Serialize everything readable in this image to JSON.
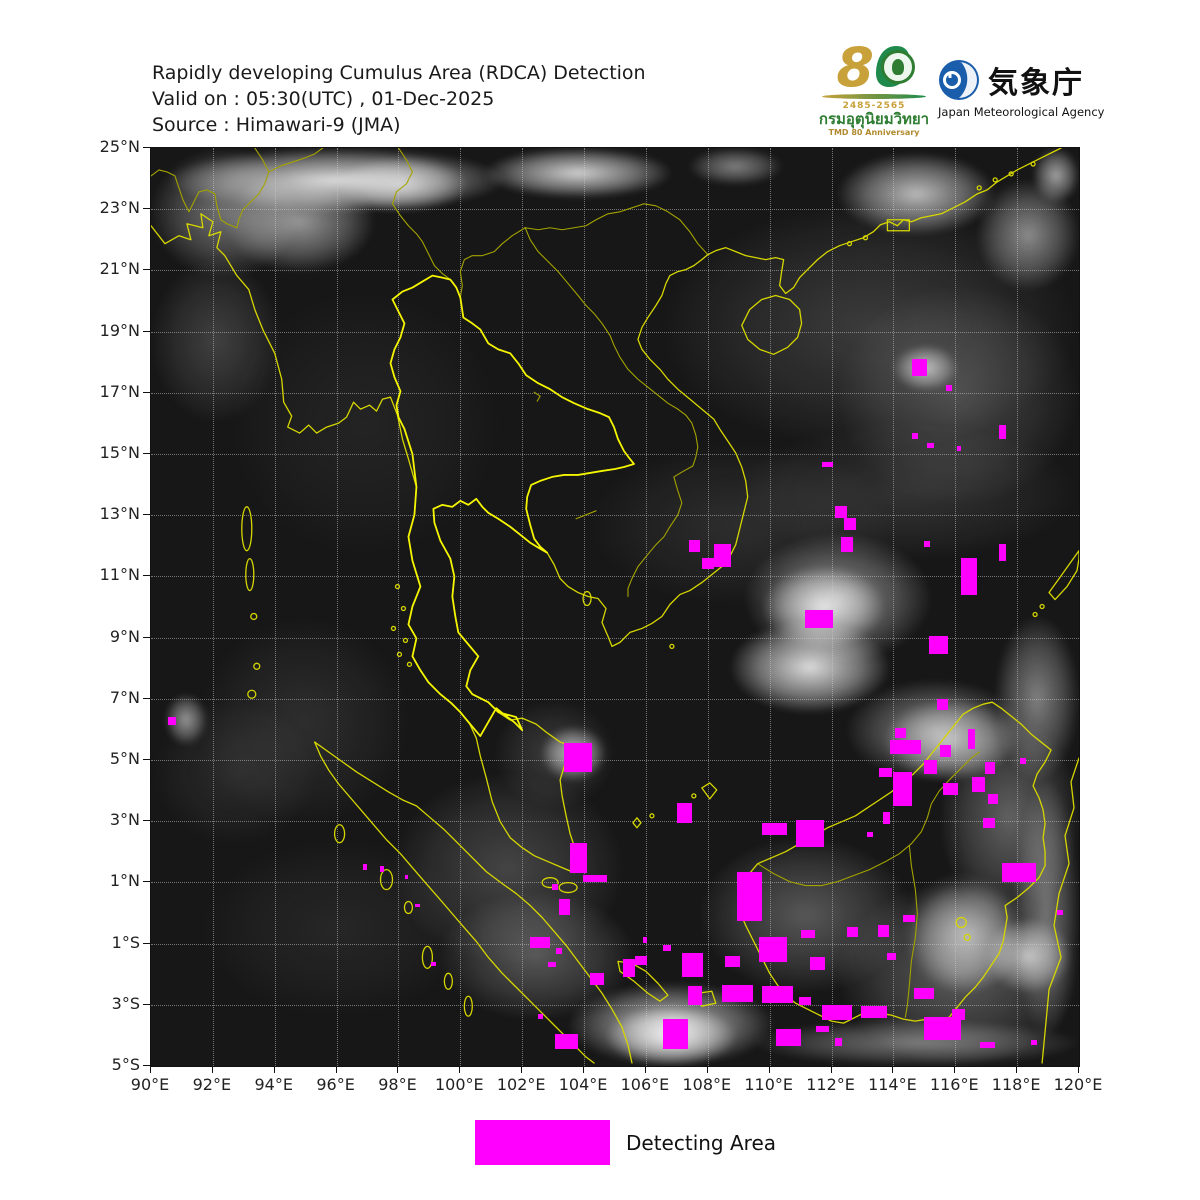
{
  "header": {
    "title_line1": "Rapidly developing Cumulus Area (RDCA) Detection",
    "title_line2": "Valid on : 05:30(UTC) , 01-Dec-2025",
    "title_line3": "Source : Himawari-9 (JMA)"
  },
  "logos": {
    "tmd": {
      "digit8": "8",
      "digit0": "0",
      "years": "2485-2565",
      "thai_name": "กรมอุตุนิยมวิทยา",
      "anniversary": "TMD 80 Anniversary"
    },
    "jma": {
      "kanji": "気象庁",
      "name": "Japan Meteorological Agency"
    }
  },
  "map": {
    "lon_min": 90,
    "lon_span": 30,
    "lat_max": 25,
    "lat_span": 30,
    "grid_divisions": 15,
    "x_ticks": [
      "90°E",
      "92°E",
      "94°E",
      "96°E",
      "98°E",
      "100°E",
      "102°E",
      "104°E",
      "106°E",
      "108°E",
      "110°E",
      "112°E",
      "114°E",
      "116°E",
      "118°E",
      "120°E"
    ],
    "y_ticks": [
      "25°N",
      "23°N",
      "21°N",
      "19°N",
      "17°N",
      "15°N",
      "13°N",
      "11°N",
      "9°N",
      "7°N",
      "5°N",
      "3°N",
      "1°N",
      "1°S",
      "3°S",
      "5°S"
    ],
    "coast_color": "#d6d600",
    "thailand_border_color": "#f5f500",
    "border_color_dim": "#a3a300",
    "detection_color": "#ff00ff",
    "detections_deg": [
      [
        114.6,
        18.1,
        0.5,
        0.55
      ],
      [
        115.7,
        17.25,
        0.2,
        0.2
      ],
      [
        114.6,
        15.7,
        0.2,
        0.2
      ],
      [
        115.1,
        15.35,
        0.2,
        0.15
      ],
      [
        117.4,
        15.95,
        0.25,
        0.45
      ],
      [
        116.05,
        15.25,
        0.15,
        0.15
      ],
      [
        111.7,
        14.75,
        0.35,
        0.18
      ],
      [
        112.1,
        13.3,
        0.4,
        0.4
      ],
      [
        112.4,
        12.9,
        0.4,
        0.4
      ],
      [
        112.3,
        12.3,
        0.4,
        0.5
      ],
      [
        107.4,
        12.2,
        0.35,
        0.4
      ],
      [
        108.2,
        12.05,
        0.55,
        0.75
      ],
      [
        107.8,
        11.6,
        0.4,
        0.35
      ],
      [
        115.0,
        12.15,
        0.18,
        0.18
      ],
      [
        116.2,
        11.6,
        0.5,
        1.2
      ],
      [
        117.4,
        12.05,
        0.25,
        0.55
      ],
      [
        90.55,
        6.4,
        0.25,
        0.25
      ],
      [
        103.35,
        5.55,
        0.9,
        0.95
      ],
      [
        103.55,
        2.3,
        0.55,
        1.0
      ],
      [
        103.95,
        1.25,
        0.8,
        0.25
      ],
      [
        103.2,
        0.45,
        0.35,
        0.5
      ],
      [
        102.25,
        -0.8,
        0.65,
        0.35
      ],
      [
        103.1,
        -1.15,
        0.18,
        0.18
      ],
      [
        102.85,
        -1.6,
        0.25,
        0.18
      ],
      [
        104.2,
        -1.95,
        0.45,
        0.4
      ],
      [
        102.5,
        -3.3,
        0.18,
        0.18
      ],
      [
        103.05,
        -3.95,
        0.75,
        0.5
      ],
      [
        111.15,
        9.9,
        0.9,
        0.6
      ],
      [
        115.15,
        9.05,
        0.6,
        0.6
      ],
      [
        115.4,
        7.0,
        0.35,
        0.35
      ],
      [
        114.05,
        6.05,
        0.35,
        0.33
      ],
      [
        113.9,
        5.65,
        1.0,
        0.45
      ],
      [
        115.0,
        5.0,
        0.4,
        0.45
      ],
      [
        114.0,
        4.6,
        0.6,
        1.1
      ],
      [
        115.5,
        5.5,
        0.35,
        0.4
      ],
      [
        115.6,
        4.25,
        0.5,
        0.4
      ],
      [
        116.4,
        6.0,
        0.25,
        0.65
      ],
      [
        116.55,
        4.45,
        0.4,
        0.5
      ],
      [
        116.95,
        4.95,
        0.35,
        0.4
      ],
      [
        117.05,
        3.9,
        0.33,
        0.33
      ],
      [
        116.9,
        3.1,
        0.4,
        0.33
      ],
      [
        118.1,
        5.05,
        0.18,
        0.18
      ],
      [
        113.55,
        4.75,
        0.4,
        0.3
      ],
      [
        113.65,
        3.3,
        0.25,
        0.38
      ],
      [
        113.15,
        2.65,
        0.18,
        0.18
      ],
      [
        109.75,
        2.95,
        0.8,
        0.4
      ],
      [
        110.85,
        3.05,
        0.9,
        0.9
      ],
      [
        107.0,
        3.6,
        0.5,
        0.65
      ],
      [
        108.95,
        1.35,
        0.8,
        1.6
      ],
      [
        112.5,
        -0.45,
        0.35,
        0.35
      ],
      [
        113.5,
        -0.4,
        0.35,
        0.4
      ],
      [
        114.3,
        -0.05,
        0.4,
        0.25
      ],
      [
        117.5,
        1.65,
        1.1,
        0.65
      ],
      [
        119.3,
        0.1,
        0.18,
        0.18
      ],
      [
        105.9,
        -0.8,
        0.15,
        0.18
      ],
      [
        106.55,
        -1.05,
        0.25,
        0.18
      ],
      [
        105.25,
        -1.5,
        0.4,
        0.6
      ],
      [
        107.15,
        -1.3,
        0.7,
        0.8
      ],
      [
        108.55,
        -1.4,
        0.5,
        0.35
      ],
      [
        109.65,
        -0.8,
        0.9,
        0.8
      ],
      [
        111.0,
        -0.55,
        0.45,
        0.28
      ],
      [
        111.3,
        -1.45,
        0.5,
        0.4
      ],
      [
        113.8,
        -1.3,
        0.3,
        0.25
      ],
      [
        107.35,
        -2.4,
        0.45,
        0.6
      ],
      [
        108.45,
        -2.35,
        1.0,
        0.55
      ],
      [
        109.75,
        -2.4,
        1.0,
        0.55
      ],
      [
        110.95,
        -2.75,
        0.4,
        0.25
      ],
      [
        111.7,
        -3.0,
        0.95,
        0.5
      ],
      [
        112.95,
        -3.05,
        0.85,
        0.38
      ],
      [
        114.65,
        -2.45,
        0.65,
        0.35
      ],
      [
        115.0,
        -3.4,
        1.2,
        0.75
      ],
      [
        115.9,
        -3.15,
        0.4,
        0.35
      ],
      [
        110.2,
        -3.8,
        0.8,
        0.55
      ],
      [
        111.5,
        -3.7,
        0.42,
        0.2
      ],
      [
        112.1,
        -4.1,
        0.25,
        0.25
      ],
      [
        106.55,
        -3.45,
        0.8,
        1.0
      ],
      [
        116.8,
        -4.2,
        0.5,
        0.22
      ],
      [
        118.45,
        -4.15,
        0.18,
        0.18
      ],
      [
        105.65,
        -1.4,
        0.4,
        0.3
      ],
      [
        96.85,
        1.6,
        0.12,
        0.18
      ],
      [
        97.4,
        1.55,
        0.12,
        0.2
      ],
      [
        98.2,
        1.25,
        0.12,
        0.15
      ],
      [
        98.55,
        0.3,
        0.15,
        0.12
      ],
      [
        99.05,
        -1.6,
        0.15,
        0.12
      ],
      [
        102.95,
        0.95,
        0.2,
        0.2
      ]
    ],
    "clouds_pct": [
      [
        2,
        0,
        36,
        7,
        0.85
      ],
      [
        0,
        0,
        16,
        14,
        0.4
      ],
      [
        36,
        0,
        20,
        5.5,
        0.8
      ],
      [
        58,
        0,
        10,
        4,
        0.45
      ],
      [
        74,
        0.5,
        17,
        9,
        0.7
      ],
      [
        89,
        3.5,
        11,
        12,
        0.5
      ],
      [
        95,
        0,
        5,
        6,
        0.6
      ],
      [
        55,
        6,
        45,
        27,
        0.16
      ],
      [
        74,
        15,
        26,
        24,
        0.2
      ],
      [
        63,
        30,
        37,
        15,
        0.12
      ],
      [
        80,
        21.5,
        7,
        5,
        0.65
      ],
      [
        64,
        42,
        20,
        14,
        0.5
      ],
      [
        66,
        45.5,
        13,
        9,
        0.8
      ],
      [
        62.5,
        51.5,
        17,
        10,
        0.85
      ],
      [
        42,
        63,
        7,
        6,
        0.7
      ],
      [
        75,
        58,
        19,
        11,
        0.45
      ],
      [
        79,
        60,
        14,
        9,
        0.6
      ],
      [
        91,
        51,
        9,
        18,
        0.45
      ],
      [
        93,
        69,
        7,
        28,
        0.4
      ],
      [
        85,
        62,
        15,
        22,
        0.32
      ],
      [
        90,
        84,
        9,
        8,
        0.65
      ],
      [
        81,
        79,
        13,
        13,
        0.4
      ],
      [
        45,
        91,
        22,
        9,
        0.7
      ],
      [
        49,
        93.5,
        14,
        6.5,
        0.85
      ],
      [
        59,
        75,
        23,
        17,
        0.28
      ],
      [
        26,
        68,
        25,
        21,
        0.2
      ],
      [
        31,
        81,
        21,
        14,
        0.28
      ],
      [
        5,
        51,
        23,
        23,
        0.1
      ],
      [
        0,
        60,
        18,
        16,
        0.09
      ],
      [
        1.5,
        59.5,
        4.5,
        5.5,
        0.55
      ],
      [
        47,
        32,
        33,
        18,
        0.1
      ],
      [
        74,
        80,
        26,
        20,
        0.3
      ],
      [
        65,
        95,
        35,
        5,
        0.4
      ],
      [
        37,
        60,
        13,
        12,
        0.16
      ],
      [
        0,
        12,
        14,
        18,
        0.18
      ],
      [
        8,
        2.5,
        16,
        11,
        0.55
      ],
      [
        20,
        1,
        14,
        6,
        0.6
      ],
      [
        8,
        15,
        30,
        30,
        0.06
      ],
      [
        5,
        75,
        30,
        20,
        0.07
      ],
      [
        82,
        80,
        12,
        12,
        0.4
      ]
    ]
  },
  "legend": {
    "label": "Detecting Area",
    "color": "#ff00ff"
  }
}
